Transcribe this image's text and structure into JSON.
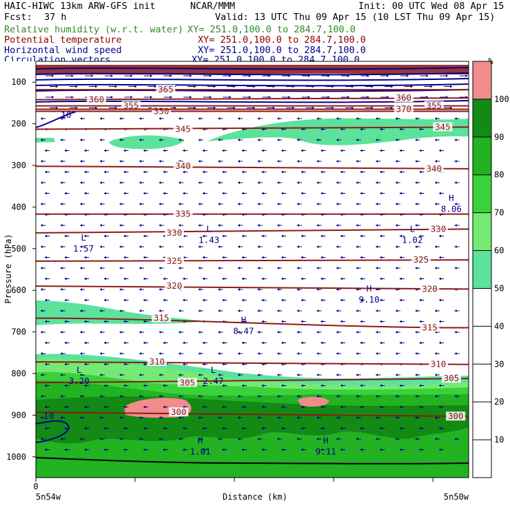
{
  "header": {
    "model": "HAIC-HIWC 13km ARW-GFS init",
    "org": "NCAR/MMM",
    "init": "Init: 00 UTC Wed 08 Apr 15",
    "fcst_label": "Fcst:",
    "fcst_value": "37 h",
    "valid": "Valid: 13 UTC Thu 09 Apr 15 (10 LST Thu 09 Apr 15)"
  },
  "legend": [
    {
      "name": "Relative humidity (w.r.t. water)",
      "xy": "XY= 251.0,100.0 to 284.7,100.0",
      "color": "#2e8b22"
    },
    {
      "name": "Potential temperature",
      "xy": "XY= 251.0,100.0 to 284.7,100.0",
      "color": "#8b0000"
    },
    {
      "name": "Horizontal wind speed",
      "xy": "XY= 251.0,100.0 to 284.7,100.0",
      "color": "#00008b"
    },
    {
      "name": "Circulation vectors",
      "xy": "XY= 251.0,100.0 to 284.7,100.0",
      "color": "#00008b"
    }
  ],
  "chart_data": {
    "type": "heatmap",
    "xlabel": "Distance (km)",
    "ylabel": "Pressure (hPa)",
    "x_tick_labels": [
      "0"
    ],
    "x_end_labels": [
      "5n54w",
      "5n50w"
    ],
    "y_ticks": [
      100,
      200,
      300,
      400,
      500,
      600,
      700,
      800,
      900,
      1000
    ],
    "ylim": [
      1050,
      50
    ],
    "colorbar": {
      "unit": "%",
      "ticks": [
        10,
        20,
        30,
        40,
        50,
        60,
        70,
        80,
        90,
        100
      ],
      "levels": [
        {
          "from": 50,
          "to": 60,
          "color": "#5ce29a"
        },
        {
          "from": 60,
          "to": 70,
          "color": "#74ea74"
        },
        {
          "from": 70,
          "to": 80,
          "color": "#3ad23a"
        },
        {
          "from": 80,
          "to": 90,
          "color": "#22b222"
        },
        {
          "from": 90,
          "to": 100,
          "color": "#138a13"
        },
        {
          "from": 100,
          "to": 110,
          "color": "#f28c8c"
        }
      ]
    },
    "theta_contours": [
      {
        "value": 300,
        "labels": [
          [
            0.33,
            893
          ],
          [
            0.97,
            903
          ]
        ]
      },
      {
        "value": 305,
        "labels": [
          [
            0.35,
            822
          ],
          [
            0.96,
            812
          ]
        ]
      },
      {
        "value": 310,
        "labels": [
          [
            0.28,
            772
          ],
          [
            0.93,
            778
          ]
        ]
      },
      {
        "value": 315,
        "labels": [
          [
            0.29,
            667
          ],
          [
            0.91,
            690
          ]
        ]
      },
      {
        "value": 320,
        "labels": [
          [
            0.32,
            590
          ],
          [
            0.91,
            597
          ]
        ]
      },
      {
        "value": 325,
        "labels": [
          [
            0.32,
            530
          ],
          [
            0.89,
            527
          ]
        ]
      },
      {
        "value": 330,
        "labels": [
          [
            0.32,
            462
          ],
          [
            0.93,
            453
          ]
        ]
      },
      {
        "value": 335,
        "labels": [
          [
            0.34,
            417
          ]
        ]
      },
      {
        "value": 340,
        "labels": [
          [
            0.34,
            302
          ],
          [
            0.92,
            308
          ]
        ]
      },
      {
        "value": 345,
        "labels": [
          [
            0.34,
            213
          ],
          [
            0.94,
            208
          ]
        ]
      },
      {
        "value": 350,
        "labels": [
          [
            0.29,
            170
          ]
        ]
      },
      {
        "value": 355,
        "labels": [
          [
            0.22,
            157
          ],
          [
            0.92,
            157
          ]
        ]
      },
      {
        "value": 360,
        "labels": [
          [
            0.14,
            142
          ],
          [
            0.85,
            138
          ]
        ]
      },
      {
        "value": 365,
        "labels": [
          [
            0.3,
            118
          ]
        ]
      },
      {
        "value": 370,
        "labels": [
          [
            0.85,
            165
          ]
        ]
      }
    ],
    "wind_labels": [
      {
        "text": "10",
        "x": 0.07,
        "y": 179
      },
      {
        "text": "10",
        "x": 0.03,
        "y": 903
      }
    ],
    "extrema": [
      {
        "type": "L",
        "value": "1.57",
        "x": 0.11,
        "y": 490
      },
      {
        "type": "L",
        "value": "1.43",
        "x": 0.4,
        "y": 470
      },
      {
        "type": "L",
        "value": "1.02",
        "x": 0.87,
        "y": 470
      },
      {
        "type": "H",
        "value": "8.06",
        "x": 0.96,
        "y": 395
      },
      {
        "type": "H",
        "value": "9.10",
        "x": 0.77,
        "y": 613
      },
      {
        "type": "H",
        "value": "8.47",
        "x": 0.48,
        "y": 688
      },
      {
        "type": "L",
        "value": "3.20",
        "x": 0.1,
        "y": 808
      },
      {
        "type": "L",
        "value": "2.47",
        "x": 0.41,
        "y": 808
      },
      {
        "type": "H",
        "value": "1.01",
        "x": 0.38,
        "y": 978
      },
      {
        "type": "H",
        "value": "9.11",
        "x": 0.67,
        "y": 978
      }
    ]
  }
}
